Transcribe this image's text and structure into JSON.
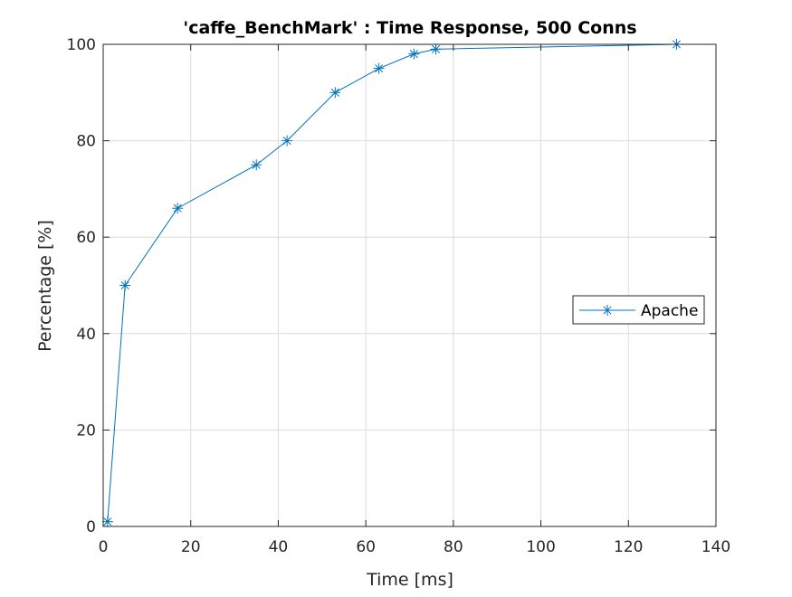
{
  "chart_data": {
    "type": "line",
    "title": "'caffe_BenchMark' : Time Response, 500 Conns",
    "xlabel": "Time [ms]",
    "ylabel": "Percentage [%]",
    "xlim": [
      0,
      140
    ],
    "ylim": [
      0,
      100
    ],
    "xticks": [
      0,
      20,
      40,
      60,
      80,
      100,
      120,
      140
    ],
    "yticks": [
      0,
      20,
      40,
      60,
      80,
      100
    ],
    "grid": true,
    "legend_position": "right",
    "series": [
      {
        "name": "Apache",
        "color": "#0072BD",
        "marker": "asterisk",
        "x": [
          1,
          5,
          17,
          35,
          42,
          53,
          63,
          71,
          76,
          131
        ],
        "y": [
          1,
          50,
          66,
          75,
          80,
          90,
          95,
          98,
          99,
          100
        ]
      }
    ]
  }
}
